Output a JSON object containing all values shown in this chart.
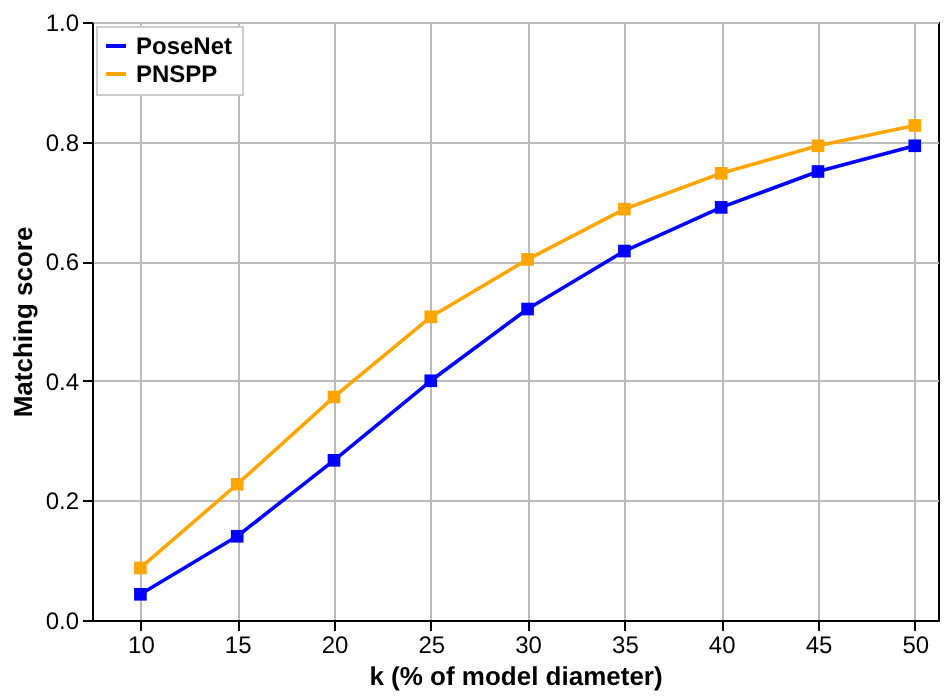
{
  "chart_data": {
    "type": "line",
    "xlabel": "k (% of model diameter)",
    "ylabel": "Matching score",
    "x": [
      10,
      15,
      20,
      25,
      30,
      35,
      40,
      45,
      50
    ],
    "series": [
      {
        "name": "PoseNet",
        "color": "#0000ff",
        "values": [
          0.043,
          0.14,
          0.267,
          0.4,
          0.52,
          0.617,
          0.69,
          0.75,
          0.793
        ]
      },
      {
        "name": "PNSPP",
        "color": "#ffa500",
        "values": [
          0.087,
          0.227,
          0.373,
          0.507,
          0.603,
          0.687,
          0.747,
          0.793,
          0.827
        ]
      }
    ],
    "xlim": [
      7.5,
      51.2
    ],
    "ylim": [
      0,
      1.0
    ],
    "xticks": [
      10,
      15,
      20,
      25,
      30,
      35,
      40,
      45,
      50
    ],
    "yticks": [
      {
        "value": 0,
        "label": "0.0"
      },
      0.2,
      0.4,
      0.6,
      0.8,
      {
        "value": 1.0,
        "label": "1.0"
      }
    ],
    "grid": true,
    "legend": "top left",
    "marker": "square",
    "line_style": "solid"
  }
}
